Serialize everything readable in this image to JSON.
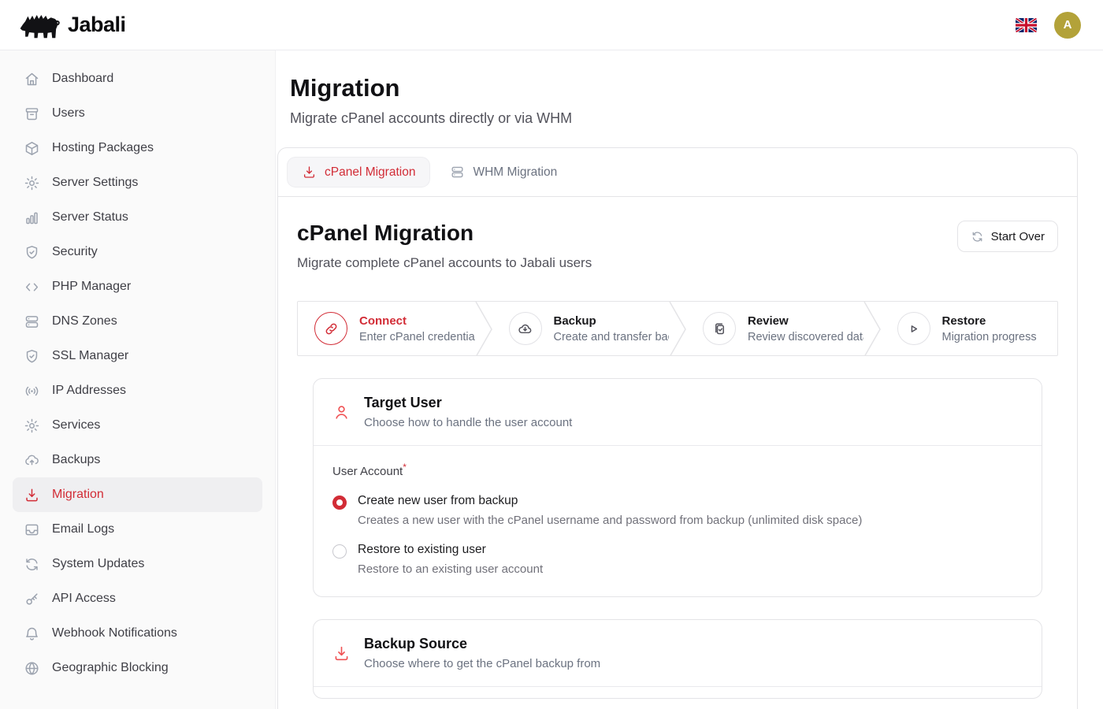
{
  "app": {
    "brand": "Jabali",
    "avatar_initial": "A"
  },
  "colors": {
    "accent": "#d22c36",
    "accent_soft": "#ef5153",
    "avatar_bg": "#b3a239"
  },
  "page": {
    "title": "Migration",
    "subtitle": "Migrate cPanel accounts directly or via WHM"
  },
  "sidebar": {
    "items": [
      {
        "label": "Dashboard",
        "icon": "home",
        "active": false
      },
      {
        "label": "Users",
        "icon": "archive",
        "active": false
      },
      {
        "label": "Hosting Packages",
        "icon": "package",
        "active": false
      },
      {
        "label": "Server Settings",
        "icon": "gear",
        "active": false
      },
      {
        "label": "Server Status",
        "icon": "chart",
        "active": false
      },
      {
        "label": "Security",
        "icon": "shield",
        "active": false
      },
      {
        "label": "PHP Manager",
        "icon": "code",
        "active": false
      },
      {
        "label": "DNS Zones",
        "icon": "server",
        "active": false
      },
      {
        "label": "SSL Manager",
        "icon": "shield",
        "active": false
      },
      {
        "label": "IP Addresses",
        "icon": "broadcast",
        "active": false
      },
      {
        "label": "Services",
        "icon": "gear",
        "active": false
      },
      {
        "label": "Backups",
        "icon": "cloud-up",
        "active": false
      },
      {
        "label": "Migration",
        "icon": "download",
        "active": true
      },
      {
        "label": "Email Logs",
        "icon": "inbox",
        "active": false
      },
      {
        "label": "System Updates",
        "icon": "refresh",
        "active": false
      },
      {
        "label": "API Access",
        "icon": "key",
        "active": false
      },
      {
        "label": "Webhook Notifications",
        "icon": "bell",
        "active": false
      },
      {
        "label": "Geographic Blocking",
        "icon": "globe",
        "active": false
      }
    ]
  },
  "tabs": [
    {
      "label": "cPanel Migration",
      "icon": "download",
      "active": true
    },
    {
      "label": "WHM Migration",
      "icon": "server",
      "active": false
    }
  ],
  "panel": {
    "title": "cPanel Migration",
    "subtitle": "Migrate complete cPanel accounts to Jabali users",
    "start_over": "Start Over"
  },
  "stepper": {
    "steps": [
      {
        "title": "Connect",
        "subtitle": "Enter cPanel credentials",
        "icon": "link",
        "active": true
      },
      {
        "title": "Backup",
        "subtitle": "Create and transfer backup",
        "icon": "cloud-down",
        "active": false
      },
      {
        "title": "Review",
        "subtitle": "Review discovered data",
        "icon": "clipboard",
        "active": false
      },
      {
        "title": "Restore",
        "subtitle": "Migration progress",
        "icon": "play",
        "active": false
      }
    ]
  },
  "target_user": {
    "title": "Target User",
    "subtitle": "Choose how to handle the user account",
    "field_label": "User Account",
    "required_mark": "*",
    "options": [
      {
        "label": "Create new user from backup",
        "description": "Creates a new user with the cPanel username and password from backup (unlimited disk space)",
        "selected": true
      },
      {
        "label": "Restore to existing user",
        "description": "Restore to an existing user account",
        "selected": false
      }
    ]
  },
  "backup_source": {
    "title": "Backup Source",
    "subtitle": "Choose where to get the cPanel backup from"
  }
}
